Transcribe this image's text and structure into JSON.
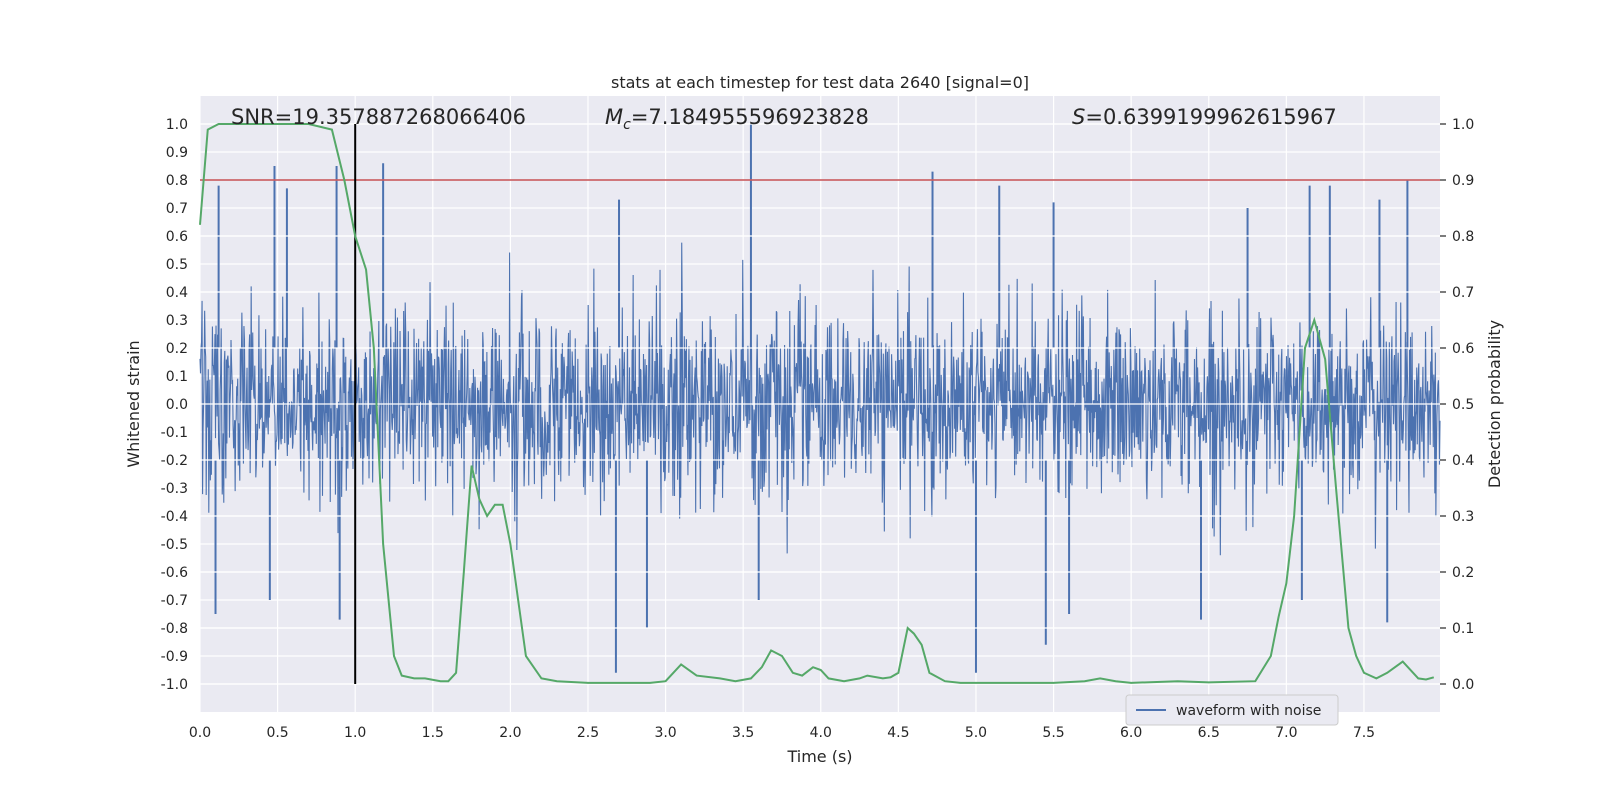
{
  "chart_data": {
    "type": "line",
    "title": "stats at each timestep for test data 2640 [signal=0]",
    "xlabel": "Time (s)",
    "ylabel": "Whitened strain",
    "y2label": "Detection probability",
    "xlim": [
      0.0,
      7.99
    ],
    "ylim": [
      -1.1,
      1.1
    ],
    "y2lim": [
      -0.05,
      1.05
    ],
    "xticks": [
      "0.0",
      "0.5",
      "1.0",
      "1.5",
      "2.0",
      "2.5",
      "3.0",
      "3.5",
      "4.0",
      "4.5",
      "5.0",
      "5.5",
      "6.0",
      "6.5",
      "7.0",
      "7.5"
    ],
    "yticks": [
      "-1.0",
      "-0.9",
      "-0.8",
      "-0.7",
      "-0.6",
      "-0.5",
      "-0.4",
      "-0.3",
      "-0.2",
      "-0.1",
      "0.0",
      "0.1",
      "0.2",
      "0.3",
      "0.4",
      "0.5",
      "0.6",
      "0.7",
      "0.8",
      "0.9",
      "1.0"
    ],
    "y2ticks": [
      "0.0",
      "0.1",
      "0.2",
      "0.3",
      "0.4",
      "0.5",
      "0.6",
      "0.7",
      "0.8",
      "0.9",
      "1.0"
    ],
    "grid": true,
    "legend_position": "lower-right",
    "annotations": {
      "snr": "SNR=19.357887268066406",
      "mc_symbol": "M",
      "mc_sub": "c",
      "mc_value": "=7.184955596923828",
      "s_symbol": "S",
      "s_value": "=0.6399199962615967"
    },
    "vertical_line_x": 1.0,
    "threshold_y2": 0.9,
    "series": [
      {
        "name": "waveform with noise",
        "axis": "left",
        "color": "#4c72b0",
        "description": "dense noise waveform",
        "envelope_upper": [
          [
            0.0,
            0.4
          ],
          [
            0.5,
            0.4
          ],
          [
            1.0,
            0.45
          ],
          [
            1.5,
            0.35
          ],
          [
            2.0,
            0.4
          ],
          [
            2.5,
            0.4
          ],
          [
            3.0,
            0.42
          ],
          [
            3.5,
            0.45
          ],
          [
            4.0,
            0.45
          ],
          [
            4.5,
            0.42
          ],
          [
            5.0,
            0.4
          ],
          [
            5.5,
            0.4
          ],
          [
            6.0,
            0.45
          ],
          [
            6.5,
            0.45
          ],
          [
            7.0,
            0.5
          ],
          [
            7.5,
            0.45
          ],
          [
            7.99,
            0.4
          ]
        ],
        "spikes_up": [
          [
            0.12,
            0.78
          ],
          [
            0.48,
            0.85
          ],
          [
            0.56,
            0.77
          ],
          [
            0.88,
            0.85
          ],
          [
            1.18,
            0.86
          ],
          [
            2.7,
            0.73
          ],
          [
            3.55,
            1.0
          ],
          [
            4.72,
            0.83
          ],
          [
            5.15,
            0.78
          ],
          [
            5.5,
            0.72
          ],
          [
            6.75,
            0.7
          ],
          [
            7.15,
            0.78
          ],
          [
            7.28,
            0.78
          ],
          [
            7.6,
            0.73
          ],
          [
            7.78,
            0.8
          ]
        ],
        "envelope_lower": [
          [
            0.0,
            -0.4
          ],
          [
            0.5,
            -0.45
          ],
          [
            1.0,
            -0.5
          ],
          [
            1.5,
            -0.4
          ],
          [
            2.0,
            -0.45
          ],
          [
            2.5,
            -0.45
          ],
          [
            3.0,
            -0.45
          ],
          [
            3.5,
            -0.5
          ],
          [
            4.0,
            -0.45
          ],
          [
            4.5,
            -0.45
          ],
          [
            5.0,
            -0.4
          ],
          [
            5.5,
            -0.45
          ],
          [
            6.0,
            -0.45
          ],
          [
            6.5,
            -0.45
          ],
          [
            7.0,
            -0.5
          ],
          [
            7.5,
            -0.5
          ],
          [
            7.99,
            -0.4
          ]
        ],
        "spikes_down": [
          [
            0.1,
            -0.75
          ],
          [
            0.45,
            -0.7
          ],
          [
            0.9,
            -0.77
          ],
          [
            2.68,
            -0.96
          ],
          [
            2.88,
            -0.8
          ],
          [
            3.6,
            -0.7
          ],
          [
            5.0,
            -0.96
          ],
          [
            5.45,
            -0.86
          ],
          [
            5.6,
            -0.75
          ],
          [
            6.45,
            -0.77
          ],
          [
            7.1,
            -0.7
          ],
          [
            7.65,
            -0.78
          ]
        ]
      },
      {
        "name": "",
        "axis": "right",
        "color": "#55a868",
        "x": [
          0.0,
          0.05,
          0.12,
          0.3,
          0.5,
          0.7,
          0.85,
          0.93,
          1.0,
          1.07,
          1.12,
          1.18,
          1.25,
          1.3,
          1.38,
          1.45,
          1.55,
          1.6,
          1.65,
          1.7,
          1.75,
          1.8,
          1.85,
          1.9,
          1.95,
          2.0,
          2.1,
          2.2,
          2.3,
          2.5,
          2.7,
          2.9,
          3.0,
          3.05,
          3.1,
          3.2,
          3.35,
          3.45,
          3.55,
          3.62,
          3.68,
          3.75,
          3.82,
          3.88,
          3.95,
          4.0,
          4.05,
          4.15,
          4.25,
          4.3,
          4.4,
          4.45,
          4.5,
          4.56,
          4.6,
          4.65,
          4.7,
          4.8,
          4.9,
          5.0,
          5.5,
          5.7,
          5.8,
          5.9,
          6.0,
          6.3,
          6.5,
          6.8,
          6.9,
          6.95,
          7.0,
          7.05,
          7.12,
          7.18,
          7.25,
          7.32,
          7.4,
          7.45,
          7.5,
          7.58,
          7.65,
          7.75,
          7.85,
          7.9,
          7.95
        ],
        "y": [
          0.82,
          0.99,
          1.0,
          1.0,
          1.0,
          1.0,
          0.99,
          0.9,
          0.8,
          0.74,
          0.6,
          0.25,
          0.05,
          0.015,
          0.01,
          0.01,
          0.005,
          0.005,
          0.02,
          0.2,
          0.39,
          0.33,
          0.3,
          0.32,
          0.32,
          0.25,
          0.05,
          0.01,
          0.005,
          0.002,
          0.002,
          0.002,
          0.005,
          0.02,
          0.035,
          0.015,
          0.01,
          0.005,
          0.01,
          0.03,
          0.06,
          0.05,
          0.02,
          0.015,
          0.03,
          0.025,
          0.01,
          0.005,
          0.01,
          0.015,
          0.01,
          0.012,
          0.02,
          0.1,
          0.09,
          0.07,
          0.02,
          0.005,
          0.002,
          0.002,
          0.002,
          0.005,
          0.01,
          0.005,
          0.002,
          0.005,
          0.003,
          0.005,
          0.05,
          0.12,
          0.18,
          0.3,
          0.6,
          0.65,
          0.58,
          0.35,
          0.1,
          0.05,
          0.02,
          0.01,
          0.02,
          0.04,
          0.01,
          0.008,
          0.012
        ]
      }
    ]
  }
}
